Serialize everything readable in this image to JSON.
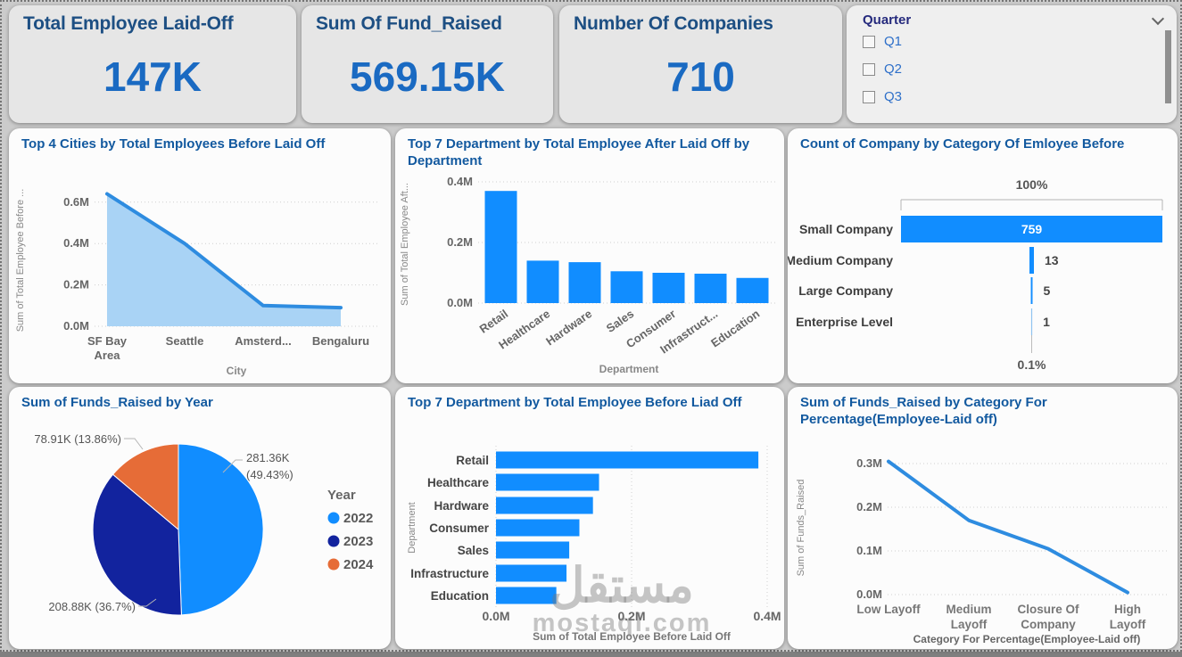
{
  "kpis": [
    {
      "title": "Total Employee Laid-Off",
      "value": "147K"
    },
    {
      "title": "Sum Of Fund_Raised",
      "value": "569.15K"
    },
    {
      "title": "Number Of Companies",
      "value": "710"
    }
  ],
  "slicer": {
    "title": "Quarter",
    "options": [
      "Q1",
      "Q2",
      "Q3"
    ]
  },
  "watermark": {
    "arabic": "مستقل",
    "latin": "mostaql.com"
  },
  "colors": {
    "accent_blue": "#118DFF",
    "navy": "#12239E",
    "orange": "#E66C37",
    "line_blue": "#2E8CE0",
    "area_fill": "#A9D3F5",
    "funnel_light": "#8FC3F0",
    "kpi_title": "#1D4F83",
    "kpi_value": "#1A6AC2",
    "chart_title": "#12599F",
    "axis_text": "#666666"
  },
  "chart_data": [
    {
      "type": "area",
      "title": "Top 4 Cities by Total Employees Before Laid Off",
      "categories": [
        "SF Bay Area",
        "Seattle",
        "Amsterd...",
        "Bengaluru"
      ],
      "values": [
        0.64,
        0.4,
        0.1,
        0.09
      ],
      "xlabel": "City",
      "ylabel": "Sum of Total Employee Before ...",
      "y_ticks": [
        0.0,
        0.2,
        0.4,
        0.6
      ],
      "ylim": [
        0,
        0.68
      ],
      "unit": "M"
    },
    {
      "type": "bar",
      "title": "Top 7 Department by Total Employee After Laid Off by Department",
      "categories": [
        "Retail",
        "Healthcare",
        "Hardware",
        "Sales",
        "Consumer",
        "Infrastruct...",
        "Education"
      ],
      "values": [
        0.37,
        0.14,
        0.135,
        0.105,
        0.1,
        0.097,
        0.083
      ],
      "xlabel": "Department",
      "ylabel": "Sum of Total Employee Aft...",
      "y_ticks": [
        0.0,
        0.2,
        0.4
      ],
      "ylim": [
        0,
        0.42
      ],
      "unit": "M"
    },
    {
      "type": "funnel",
      "title": "Count of Company by Category Of Emloyee Before",
      "categories": [
        "Small Company",
        "Medium Company",
        "Large Company",
        "Enterprise Level"
      ],
      "values": [
        759,
        13,
        5,
        1
      ],
      "top_label": "100%",
      "bottom_label": "0.1%"
    },
    {
      "type": "pie",
      "title": "Sum of Funds_Raised by Year",
      "legend_title": "Year",
      "legend_position": "right",
      "slices": [
        {
          "label": "2022",
          "value": 281.36,
          "display": "281.36K",
          "pct": "49.43%",
          "color": "#118DFF"
        },
        {
          "label": "2023",
          "value": 208.88,
          "display": "208.88K",
          "pct": "36.7%",
          "color": "#12239E"
        },
        {
          "label": "2024",
          "value": 78.91,
          "display": "78.91K",
          "pct": "13.86%",
          "color": "#E66C37"
        }
      ]
    },
    {
      "type": "barh",
      "title": "Top 7 Department by Total Employee Before Liad Off",
      "categories": [
        "Retail",
        "Healthcare",
        "Hardware",
        "Consumer",
        "Sales",
        "Infrastructure",
        "Education"
      ],
      "values": [
        0.387,
        0.152,
        0.143,
        0.123,
        0.108,
        0.104,
        0.089
      ],
      "xlabel": "Sum of Total Employee Before Laid Off",
      "ylabel": "Department",
      "x_ticks": [
        0.0,
        0.2,
        0.4
      ],
      "xlim": [
        0,
        0.43
      ],
      "unit": "M"
    },
    {
      "type": "line",
      "title": "Sum of Funds_Raised by Category For Percentage(Employee-Laid off)",
      "categories": [
        "Low Layoff",
        "Medium Layoff",
        "Closure Of Company",
        "High Layoff"
      ],
      "values": [
        0.305,
        0.17,
        0.105,
        0.005
      ],
      "xlabel": "Category For Percentage(Employee-Laid off)",
      "ylabel": "Sum of Funds_Raised",
      "y_ticks": [
        0.0,
        0.1,
        0.2,
        0.3
      ],
      "ylim": [
        0,
        0.33
      ],
      "unit": "M"
    }
  ]
}
